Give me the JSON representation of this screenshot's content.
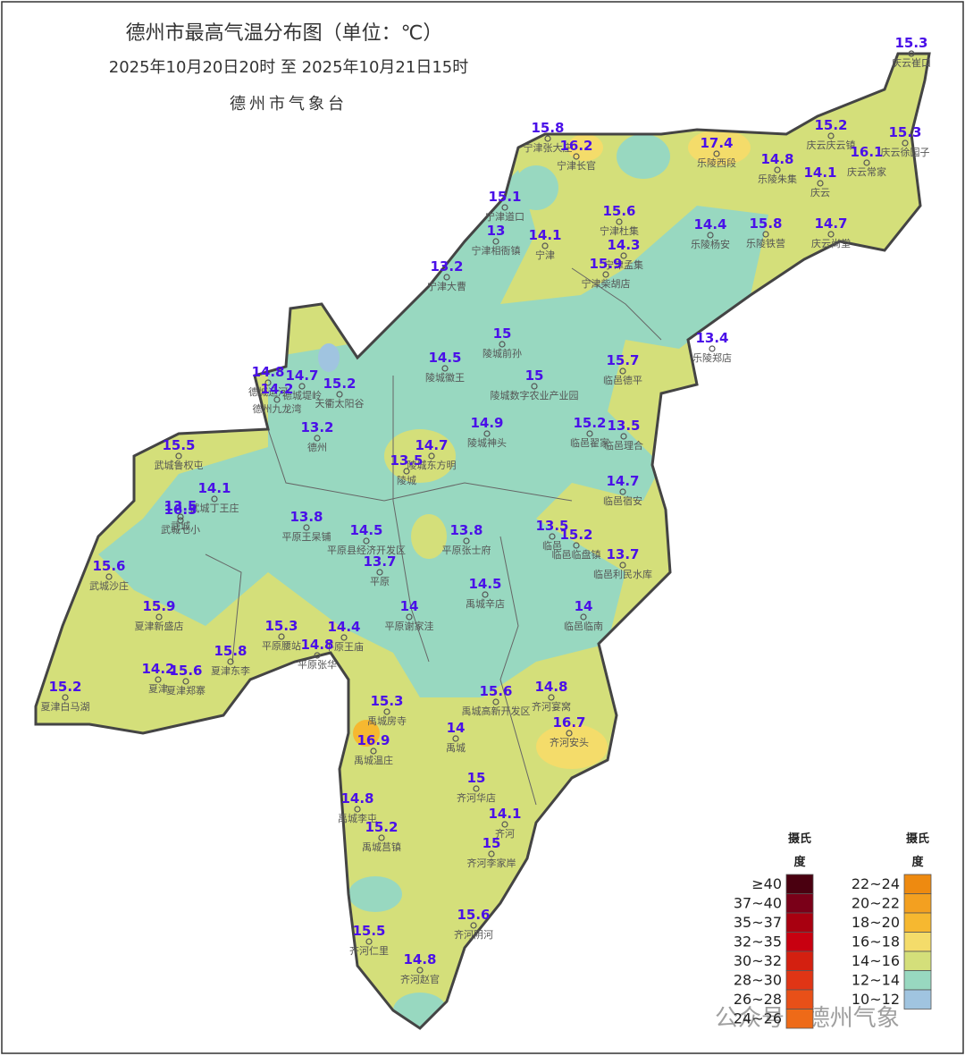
{
  "title": "德州市最高气温分布图（单位：℃）",
  "period": "2025年10月20日20时  至  2025年10月21日15时",
  "issuer": "德州市气象台",
  "watermark": "公众号 · 德州气象",
  "stations": [
    {
      "label": "庆云崔口",
      "value": 15.3
    },
    {
      "label": "宁津张大庄",
      "value": 15.8
    },
    {
      "label": "宁津长官",
      "value": 16.2
    },
    {
      "label": "乐陵西段",
      "value": 17.4
    },
    {
      "label": "乐陵朱集",
      "value": 14.8
    },
    {
      "label": "庆云庆云镇",
      "value": 15.2
    },
    {
      "label": "庆云徐园子",
      "value": 15.3
    },
    {
      "label": "庆云常家",
      "value": 16.1
    },
    {
      "label": "庆云",
      "value": 14.1
    },
    {
      "label": "宁津道口",
      "value": 15.1
    },
    {
      "label": "宁津相衙镇",
      "value": 13
    },
    {
      "label": "宁津",
      "value": 14.1
    },
    {
      "label": "宁津杜集",
      "value": 15.6
    },
    {
      "label": "宁津孟集",
      "value": 14.3
    },
    {
      "label": "宁津柴胡店",
      "value": 15.9
    },
    {
      "label": "乐陵杨安",
      "value": 14.4
    },
    {
      "label": "乐陵铁营",
      "value": 15.8
    },
    {
      "label": "庆云尚堂",
      "value": 14.7
    },
    {
      "label": "宁津大曹",
      "value": 13.2
    },
    {
      "label": "陵城前孙",
      "value": 15
    },
    {
      "label": "陵城徽王",
      "value": 14.5
    },
    {
      "label": "陵城数字农业产业园",
      "value": 15
    },
    {
      "label": "乐陵郑店",
      "value": 13.4
    },
    {
      "label": "临邑德平",
      "value": 15.7
    },
    {
      "label": "德城运河",
      "value": 14.8
    },
    {
      "label": "德城堤岭",
      "value": 14.7
    },
    {
      "label": "德州九龙湾",
      "value": 14.2
    },
    {
      "label": "天衢太阳谷",
      "value": 15.2
    },
    {
      "label": "德州",
      "value": 13.2
    },
    {
      "label": "陵城神头",
      "value": 14.9
    },
    {
      "label": "临邑翟家",
      "value": 15.2
    },
    {
      "label": "临邑理合",
      "value": 13.5
    },
    {
      "label": "陵城东方明",
      "value": 14.7
    },
    {
      "label": "陵城",
      "value": 13.5
    },
    {
      "label": "武城鲁权屯",
      "value": 15.5
    },
    {
      "label": "武城丁王庄",
      "value": 14.1
    },
    {
      "label": "武城",
      "value": 13.5
    },
    {
      "label": "武城七小",
      "value": 16.5
    },
    {
      "label": "临邑宿安",
      "value": 14.7
    },
    {
      "label": "平原王杲铺",
      "value": 13.8
    },
    {
      "label": "平原县经济开发区",
      "value": 14.5
    },
    {
      "label": "平原张士府",
      "value": 13.8
    },
    {
      "label": "平原",
      "value": 13.7
    },
    {
      "label": "临邑",
      "value": 13.5
    },
    {
      "label": "临邑临盘镇",
      "value": 15.2
    },
    {
      "label": "临邑利民水库",
      "value": 13.7
    },
    {
      "label": "武城沙庄",
      "value": 15.6
    },
    {
      "label": "夏津新盛店",
      "value": 15.9
    },
    {
      "label": "平原谢家洼",
      "value": 14
    },
    {
      "label": "禹城辛店",
      "value": 14.5
    },
    {
      "label": "临邑临南",
      "value": 14
    },
    {
      "label": "平原腰站",
      "value": 15.3
    },
    {
      "label": "平原王庙",
      "value": 14.4
    },
    {
      "label": "平原张华",
      "value": 14.8
    },
    {
      "label": "夏津东李",
      "value": 15.8
    },
    {
      "label": "夏津",
      "value": 14.2
    },
    {
      "label": "夏津郑寨",
      "value": 15.6
    },
    {
      "label": "夏津白马湖",
      "value": 15.2
    },
    {
      "label": "禹城房寺",
      "value": 15.3
    },
    {
      "label": "禹城高新开发区",
      "value": 15.6
    },
    {
      "label": "齐河宴窝",
      "value": 14.8
    },
    {
      "label": "齐河安头",
      "value": 16.7
    },
    {
      "label": "禹城",
      "value": 14
    },
    {
      "label": "禹城温庄",
      "value": 16.9
    },
    {
      "label": "齐河华店",
      "value": 15
    },
    {
      "label": "禹城李屯",
      "value": 14.8
    },
    {
      "label": "齐河",
      "value": 14.1
    },
    {
      "label": "禹城莒镇",
      "value": 15.2
    },
    {
      "label": "齐河李家岸",
      "value": 15
    },
    {
      "label": "齐河阴河",
      "value": 15.6
    },
    {
      "label": "齐河仁里",
      "value": 15.5
    },
    {
      "label": "齐河赵官",
      "value": 14.8
    }
  ],
  "legend": [
    {
      "unit_top": "摄氏",
      "unit_bottom": "度",
      "items": [
        {
          "label": "≥40",
          "color": "#4a0010"
        },
        {
          "label": "37~40",
          "color": "#7a0018"
        },
        {
          "label": "35~37",
          "color": "#a80010"
        },
        {
          "label": "32~35",
          "color": "#c80010"
        },
        {
          "label": "30~32",
          "color": "#d42010"
        },
        {
          "label": "28~30",
          "color": "#e03515"
        },
        {
          "label": "26~28",
          "color": "#e85018"
        },
        {
          "label": "24~26",
          "color": "#ee6a18"
        }
      ]
    },
    {
      "unit_top": "摄氏",
      "unit_bottom": "度",
      "items": [
        {
          "label": "22~24",
          "color": "#ee8a10"
        },
        {
          "label": "20~22",
          "color": "#f3a020"
        },
        {
          "label": "18~20",
          "color": "#f6b830"
        },
        {
          "label": "16~18",
          "color": "#f4dc6a"
        },
        {
          "label": "14~16",
          "color": "#d4df7a"
        },
        {
          "label": "12~14",
          "color": "#98d8c0"
        },
        {
          "label": "10~12",
          "color": "#a0c4e0"
        }
      ]
    }
  ]
}
